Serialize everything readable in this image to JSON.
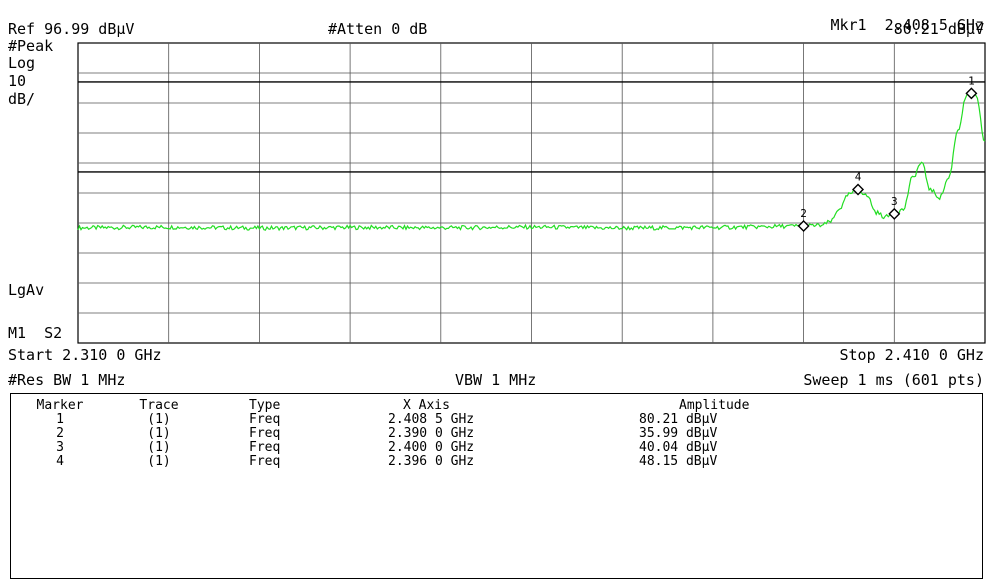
{
  "header": {
    "marker_readout_label": "Mkr1",
    "marker_readout_freq": "2.408 5 GHz",
    "marker_readout_amp": "80.21 dBµV",
    "ref_level": "Ref 96.99 dBµV",
    "attenuation": "#Atten 0 dB"
  },
  "left_labels": {
    "detector": "#Peak",
    "scale_type": "Log",
    "scale_value": "10",
    "scale_unit": "dB/",
    "avg_type": "LgAv",
    "marker_state": "M1  S2"
  },
  "footer": {
    "start": "Start 2.310 0 GHz",
    "stop": "Stop 2.410 0 GHz",
    "rbw": "#Res BW 1 MHz",
    "vbw": "VBW 1 MHz",
    "sweep": "Sweep 1 ms (601 pts)"
  },
  "marker_table": {
    "headers": [
      "Marker",
      "Trace",
      "Type",
      "X Axis",
      "Amplitude"
    ],
    "rows": [
      [
        "1",
        "(1)",
        "Freq",
        "2.408 5 GHz",
        "80.21 dBµV"
      ],
      [
        "2",
        "(1)",
        "Freq",
        "2.390 0 GHz",
        "35.99 dBµV"
      ],
      [
        "3",
        "(1)",
        "Freq",
        "2.400 0 GHz",
        "40.04 dBµV"
      ],
      [
        "4",
        "(1)",
        "Freq",
        "2.396 0 GHz",
        "48.15 dBµV"
      ]
    ]
  },
  "colors": {
    "trace": "#22dd22",
    "grid": "#555555",
    "limit_line": "#000000"
  },
  "chart_data": {
    "type": "line",
    "x_unit": "GHz",
    "y_unit": "dBµV",
    "xlim": [
      2.31,
      2.41
    ],
    "ylim": [
      -3.01,
      96.99
    ],
    "grid": true,
    "limit_lines": [
      84,
      54
    ],
    "series": [
      {
        "x": [
          2.31,
          2.32,
          2.33,
          2.34,
          2.35,
          2.36,
          2.37,
          2.38,
          2.385,
          2.388,
          2.39,
          2.392,
          2.393,
          2.394,
          2.395,
          2.396,
          2.397,
          2.398,
          2.399,
          2.4,
          2.401,
          2.402,
          2.403,
          2.404,
          2.405,
          2.406,
          2.407,
          2.408,
          2.4085,
          2.409,
          2.41
        ],
        "y": [
          35.4,
          35.6,
          35.3,
          35.5,
          35.4,
          35.6,
          35.3,
          35.5,
          35.7,
          35.9,
          36.0,
          36.2,
          37.5,
          42.0,
          46.5,
          48.2,
          46.0,
          40.5,
          39.0,
          40.0,
          41.5,
          52.0,
          57.0,
          48.0,
          45.5,
          52.0,
          68.0,
          79.5,
          80.2,
          79.0,
          64.0
        ]
      }
    ],
    "markers": [
      {
        "id": "1",
        "x": 2.4085,
        "y": 80.21
      },
      {
        "id": "2",
        "x": 2.39,
        "y": 35.99
      },
      {
        "id": "3",
        "x": 2.4,
        "y": 40.04
      },
      {
        "id": "4",
        "x": 2.396,
        "y": 48.15
      }
    ]
  }
}
